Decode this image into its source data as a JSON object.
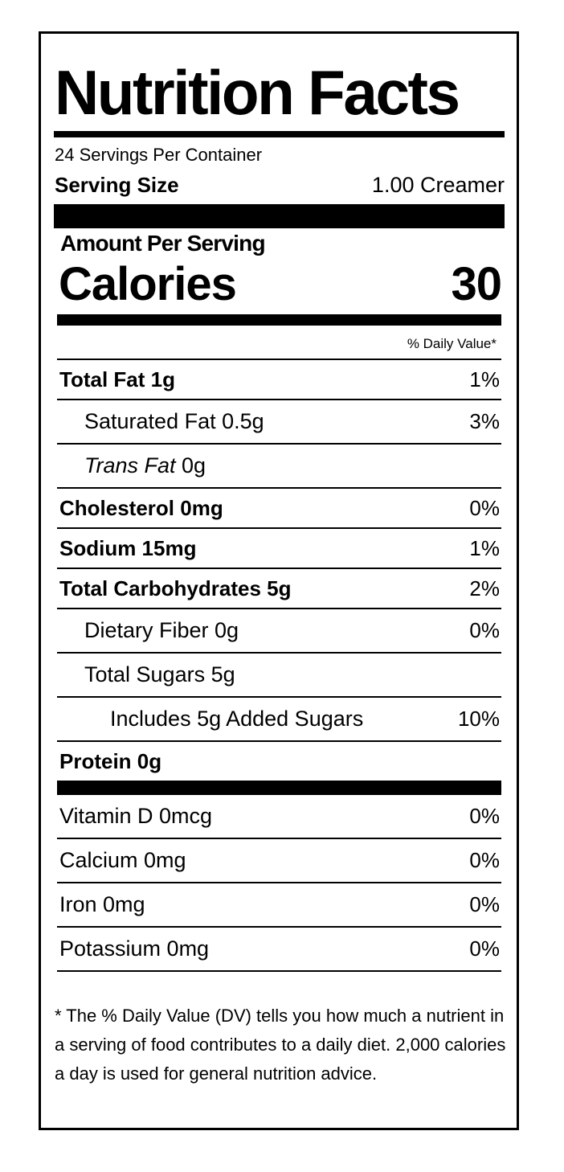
{
  "title": "Nutrition Facts",
  "servings_per_container": "24 Servings Per Container",
  "serving_size": {
    "label": "Serving Size",
    "value": "1.00 Creamer"
  },
  "amount_per_serving": "Amount Per Serving",
  "calories": {
    "label": "Calories",
    "value": "30"
  },
  "daily_value_header": "% Daily Value*",
  "nutrients": [
    {
      "name": "Total Fat 1g",
      "dv": "1%"
    },
    {
      "name": "Saturated Fat 0.5g",
      "dv": "3%"
    },
    {
      "name_italic": "Trans Fat",
      "name_rest": " 0g",
      "dv": ""
    },
    {
      "name": "Cholesterol 0mg",
      "dv": "0%"
    },
    {
      "name": "Sodium 15mg",
      "dv": "1%"
    },
    {
      "name": "Total Carbohydrates 5g",
      "dv": "2%"
    },
    {
      "name": "Dietary Fiber 0g",
      "dv": "0%"
    },
    {
      "name": "Total Sugars 5g",
      "dv": ""
    },
    {
      "name": "Includes 5g Added Sugars",
      "dv": "10%"
    },
    {
      "name": "Protein 0g",
      "dv": ""
    }
  ],
  "vitamins": [
    {
      "name": "Vitamin D 0mcg",
      "dv": "0%"
    },
    {
      "name": "Calcium 0mg",
      "dv": "0%"
    },
    {
      "name": "Iron 0mg",
      "dv": "0%"
    },
    {
      "name": "Potassium 0mg",
      "dv": "0%"
    }
  ],
  "footnote": "* The % Daily Value (DV) tells you how much a nutrient in a serving of food contributes to a daily diet. 2,000 calories a day is used for general nutrition advice."
}
